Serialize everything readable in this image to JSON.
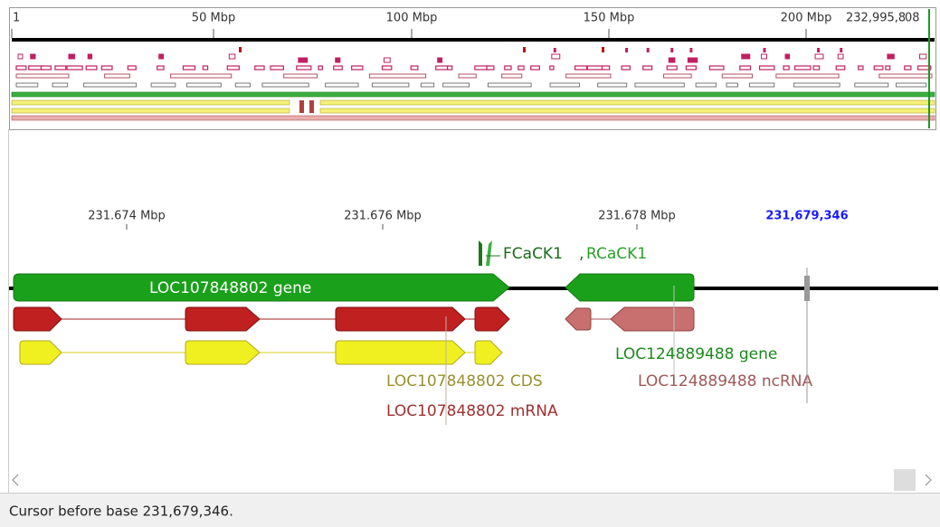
{
  "overview": {
    "ruler": [
      "1",
      "50 Mbp",
      "100 Mbp",
      "150 Mbp",
      "200 Mbp",
      "232,995,808"
    ]
  },
  "detail": {
    "ruler": [
      "231.674 Mbp",
      "231.676 Mbp",
      "231.678 Mbp"
    ],
    "cursor_label": "231,679,346",
    "primers": [
      "FCaCK1",
      ",",
      "RCaCK1"
    ],
    "annotations": {
      "gene1": "LOC107848802 gene",
      "gene2": "LOC124889488 gene",
      "ncrna": "LOC124889488 ncRNA",
      "cds": "LOC107848802 CDS",
      "mrna": "LOC107848802 mRNA"
    }
  },
  "status": "Cursor before base 231,679,346."
}
